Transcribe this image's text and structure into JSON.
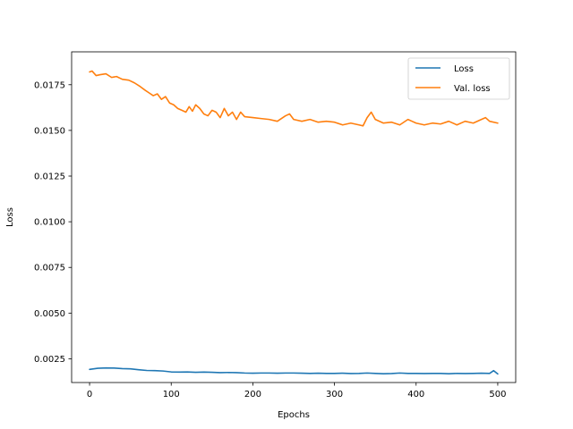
{
  "chart_data": {
    "type": "line",
    "title": "",
    "xlabel": "Epochs",
    "ylabel": "Loss",
    "xlim": [
      -22,
      522
    ],
    "ylim": [
      0.0012,
      0.0193
    ],
    "xticks": [
      0,
      100,
      200,
      300,
      400,
      500
    ],
    "yticks": [
      0.0025,
      0.005,
      0.0075,
      0.01,
      0.0125,
      0.015,
      0.0175
    ],
    "xtick_labels": [
      "0",
      "100",
      "200",
      "300",
      "400",
      "500"
    ],
    "ytick_labels": [
      "0.0025",
      "0.0050",
      "0.0075",
      "0.0100",
      "0.0125",
      "0.0150",
      "0.0175"
    ],
    "grid": false,
    "legend_position": "top-right",
    "series": [
      {
        "name": "Loss",
        "color": "#1f77b4",
        "x": [
          0,
          10,
          20,
          30,
          40,
          50,
          60,
          70,
          80,
          90,
          100,
          110,
          120,
          130,
          140,
          150,
          160,
          170,
          180,
          190,
          200,
          210,
          220,
          230,
          240,
          250,
          260,
          270,
          280,
          290,
          300,
          310,
          320,
          330,
          340,
          350,
          360,
          370,
          380,
          390,
          400,
          410,
          420,
          430,
          440,
          450,
          460,
          470,
          480,
          490,
          495,
          500
        ],
        "y": [
          0.00192,
          0.00198,
          0.002,
          0.00199,
          0.00196,
          0.00195,
          0.0019,
          0.00186,
          0.00185,
          0.00183,
          0.00178,
          0.00177,
          0.00178,
          0.00176,
          0.00177,
          0.00176,
          0.00174,
          0.00175,
          0.00174,
          0.00172,
          0.00171,
          0.00172,
          0.00172,
          0.00171,
          0.00172,
          0.00172,
          0.00171,
          0.0017,
          0.00171,
          0.0017,
          0.0017,
          0.00171,
          0.00169,
          0.0017,
          0.00172,
          0.0017,
          0.00168,
          0.00169,
          0.00172,
          0.0017,
          0.0017,
          0.00169,
          0.0017,
          0.0017,
          0.00168,
          0.0017,
          0.00169,
          0.0017,
          0.00171,
          0.0017,
          0.00185,
          0.00167
        ]
      },
      {
        "name": "Val. loss",
        "color": "#ff7f0e",
        "x": [
          0,
          3,
          8,
          13,
          20,
          27,
          33,
          40,
          48,
          55,
          62,
          68,
          73,
          78,
          83,
          88,
          93,
          98,
          103,
          108,
          113,
          118,
          122,
          126,
          130,
          135,
          140,
          145,
          150,
          155,
          160,
          165,
          170,
          175,
          180,
          185,
          190,
          200,
          210,
          220,
          230,
          240,
          245,
          250,
          260,
          270,
          280,
          290,
          300,
          310,
          320,
          330,
          335,
          340,
          345,
          350,
          360,
          370,
          380,
          390,
          395,
          400,
          410,
          420,
          430,
          440,
          450,
          460,
          470,
          480,
          485,
          490,
          500
        ],
        "y": [
          0.0182,
          0.01825,
          0.018,
          0.01805,
          0.0181,
          0.0179,
          0.01795,
          0.0178,
          0.01775,
          0.0176,
          0.0174,
          0.0172,
          0.01705,
          0.0169,
          0.017,
          0.0167,
          0.01685,
          0.0165,
          0.0164,
          0.0162,
          0.0161,
          0.016,
          0.0163,
          0.01605,
          0.0164,
          0.0162,
          0.0159,
          0.0158,
          0.0161,
          0.016,
          0.0157,
          0.0162,
          0.0158,
          0.016,
          0.0156,
          0.016,
          0.01575,
          0.0157,
          0.01565,
          0.0156,
          0.0155,
          0.0158,
          0.0159,
          0.0156,
          0.0155,
          0.0156,
          0.01545,
          0.0155,
          0.01545,
          0.0153,
          0.0154,
          0.0153,
          0.01525,
          0.0157,
          0.016,
          0.0156,
          0.0154,
          0.01545,
          0.0153,
          0.0156,
          0.0155,
          0.0154,
          0.0153,
          0.0154,
          0.01535,
          0.0155,
          0.0153,
          0.0155,
          0.0154,
          0.0156,
          0.0157,
          0.0155,
          0.0154
        ]
      }
    ]
  }
}
